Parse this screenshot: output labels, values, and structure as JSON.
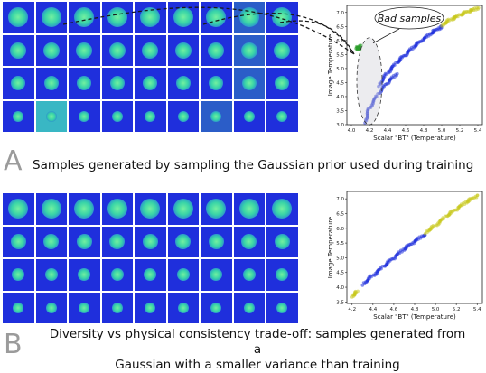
{
  "panel_a": {
    "letter": "A",
    "caption": "Samples generated by sampling the Gaussian prior used during training",
    "annotation": "Bad samples"
  },
  "panel_b": {
    "letter": "B",
    "caption_line1": "Diversity vs physical consistency trade-off: samples generated from a",
    "caption_line2": "Gaussian with a smaller variance than training"
  },
  "chart_data": [
    {
      "type": "scatter",
      "xlabel": "Scalar \"BT\" (Temperature)",
      "ylabel": "Image Temperature",
      "xlim": [
        3.95,
        5.45
      ],
      "ylim": [
        3.0,
        7.25
      ],
      "xticks": [
        "4.0",
        "4.2",
        "4.4",
        "4.6",
        "4.8",
        "5.0",
        "5.2",
        "5.4"
      ],
      "yticks": [
        "3.0",
        "3.5",
        "4.0",
        "4.5",
        "5.0",
        "5.5",
        "6.0",
        "6.5",
        "7.0"
      ],
      "series": [
        {
          "color": "#1f2fdc",
          "points": [
            [
              4.3,
              4.4
            ],
            [
              4.4,
              4.85
            ],
            [
              4.5,
              5.2
            ],
            [
              4.6,
              5.5
            ],
            [
              4.7,
              5.8
            ],
            [
              4.8,
              6.05
            ],
            [
              4.9,
              6.3
            ],
            [
              5.0,
              6.5
            ]
          ]
        },
        {
          "color": "#c8c81e",
          "points": [
            [
              5.0,
              6.55
            ],
            [
              5.1,
              6.75
            ],
            [
              5.2,
              6.9
            ],
            [
              5.3,
              7.05
            ],
            [
              5.4,
              7.15
            ]
          ]
        },
        {
          "color": "#2a3ad8",
          "points": [
            [
              4.15,
              3.1
            ],
            [
              4.2,
              3.6
            ],
            [
              4.3,
              4.1
            ],
            [
              4.4,
              4.5
            ],
            [
              4.5,
              4.8
            ]
          ]
        },
        {
          "color": "#2e9e2e",
          "points": [
            [
              4.05,
              5.75
            ],
            [
              4.08,
              5.7
            ],
            [
              4.1,
              5.8
            ]
          ]
        }
      ],
      "outlier_region": {
        "cx": 4.2,
        "cy": 4.55,
        "rx": 0.14,
        "ry": 1.55
      }
    },
    {
      "type": "scatter",
      "xlabel": "Scalar \"BT\" (Temperature)",
      "ylabel": "Image Temperature",
      "xlim": [
        4.15,
        5.45
      ],
      "ylim": [
        3.45,
        7.25
      ],
      "xticks": [
        "4.2",
        "4.4",
        "4.6",
        "4.8",
        "5.0",
        "5.2",
        "5.4"
      ],
      "yticks": [
        "3.5",
        "4.0",
        "4.5",
        "5.0",
        "5.5",
        "6.0",
        "6.5",
        "7.0"
      ],
      "series": [
        {
          "color": "#c8c81e",
          "points": [
            [
              4.2,
              3.7
            ],
            [
              4.25,
              3.85
            ]
          ]
        },
        {
          "color": "#1f2fdc",
          "points": [
            [
              4.3,
              4.1
            ],
            [
              4.4,
              4.4
            ],
            [
              4.5,
              4.7
            ],
            [
              4.6,
              5.0
            ],
            [
              4.7,
              5.3
            ],
            [
              4.8,
              5.55
            ],
            [
              4.9,
              5.8
            ]
          ]
        },
        {
          "color": "#c8c81e",
          "points": [
            [
              4.9,
              5.85
            ],
            [
              5.0,
              6.1
            ],
            [
              5.1,
              6.4
            ],
            [
              5.2,
              6.65
            ],
            [
              5.3,
              6.9
            ],
            [
              5.4,
              7.1
            ]
          ]
        }
      ]
    }
  ]
}
